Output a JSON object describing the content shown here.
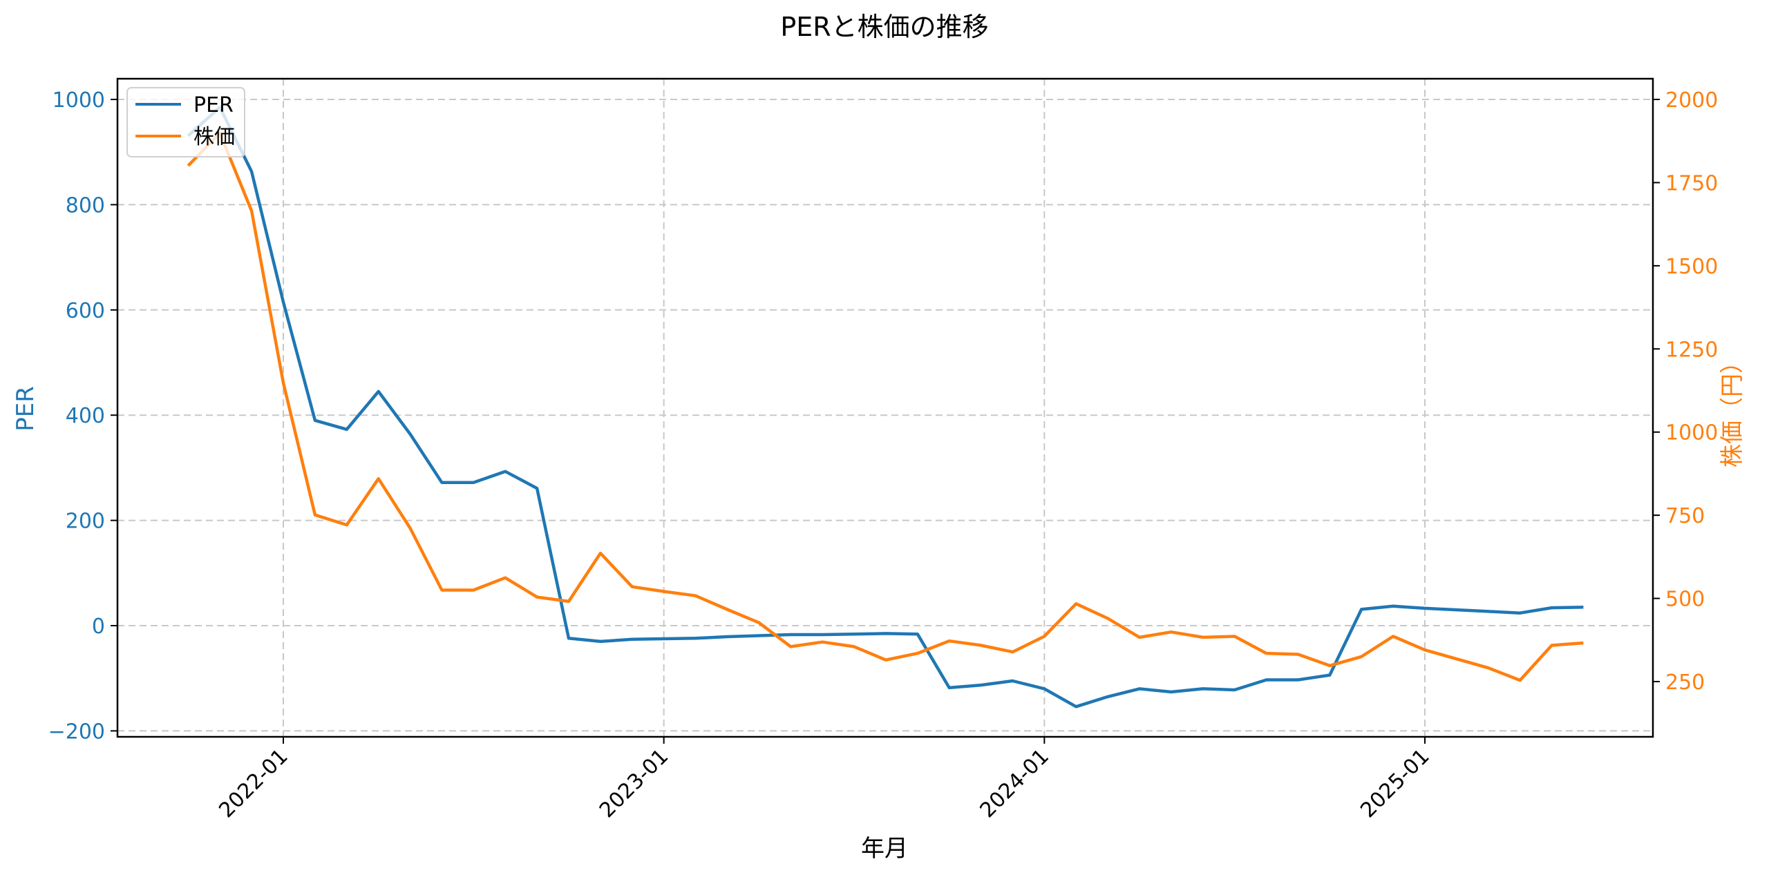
{
  "chart_data": {
    "type": "line",
    "title": "PERと株価の推移",
    "xlabel": "年月",
    "ylabel_left": "PER",
    "ylabel_right": "株価（円）",
    "x": [
      "2021-10",
      "2021-11",
      "2021-12",
      "2022-01",
      "2022-02",
      "2022-03",
      "2022-04",
      "2022-05",
      "2022-06",
      "2022-07",
      "2022-08",
      "2022-09",
      "2022-10",
      "2022-11",
      "2022-12",
      "2023-01",
      "2023-02",
      "2023-03",
      "2023-04",
      "2023-05",
      "2023-06",
      "2023-07",
      "2023-08",
      "2023-09",
      "2023-10",
      "2023-11",
      "2023-12",
      "2024-01",
      "2024-02",
      "2024-03",
      "2024-04",
      "2024-05",
      "2024-06",
      "2024-07",
      "2024-08",
      "2024-09",
      "2024-10",
      "2024-11",
      "2024-12",
      "2025-01",
      "2025-02",
      "2025-03",
      "2025-04",
      "2025-05",
      "2025-06"
    ],
    "x_ticks": [
      "2022-01",
      "2023-01",
      "2024-01",
      "2025-01"
    ],
    "series": [
      {
        "name": "PER",
        "axis": "left",
        "color": "#1f77b4",
        "values": [
          931,
          985,
          863,
          615,
          390,
          373,
          445,
          364,
          272,
          272,
          293,
          261,
          -24,
          -30,
          -26,
          -25,
          -24,
          -21,
          -19,
          -17,
          -17,
          -16,
          -15,
          -16,
          -118,
          -113,
          -105,
          -120,
          -154,
          -135,
          -120,
          -126,
          -120,
          -122,
          -103,
          -103,
          -94,
          31,
          37,
          33,
          30,
          27,
          24,
          34,
          35
        ]
      },
      {
        "name": "株価",
        "axis": "right",
        "color": "#ff7f0e",
        "values": [
          1801,
          1899,
          1665,
          1148,
          751,
          721,
          860,
          711,
          525,
          525,
          562,
          504,
          491,
          636,
          535,
          521,
          508,
          467,
          427,
          355,
          369,
          355,
          315,
          335,
          372,
          359,
          339,
          386,
          484,
          440,
          383,
          399,
          383,
          386,
          335,
          332,
          298,
          325,
          386,
          345,
          318,
          291,
          254,
          359,
          366
        ]
      }
    ],
    "ylim_left": [
      -210,
      1040
    ],
    "yticks_left": [
      -200,
      0,
      200,
      400,
      600,
      800,
      1000
    ],
    "ylim_right": [
      90,
      2060
    ],
    "yticks_right": [
      250,
      500,
      750,
      1000,
      1250,
      1500,
      1750,
      2000
    ],
    "grid": true,
    "legend_position": "upper left"
  },
  "legend": {
    "items": [
      {
        "label": "PER",
        "color": "#1f77b4"
      },
      {
        "label": "株価",
        "color": "#ff7f0e"
      }
    ]
  }
}
